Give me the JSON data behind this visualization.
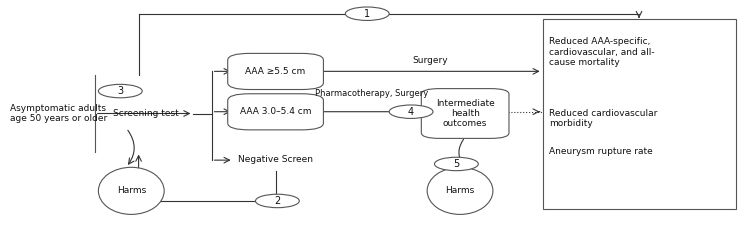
{
  "figsize": [
    7.5,
    2.27
  ],
  "dpi": 100,
  "bg_color": "#ffffff",
  "font_size": 6.5,
  "line_color": "#333333",
  "box_edge_color": "#555555",
  "text_color": "#111111",
  "asymptomatic_text": "Asymptomatic adults\nage 50 years or older",
  "screening_text": "Screening test",
  "aaa55_text": "AAA ≥5.5 cm",
  "aaa30_text": "AAA 3.0–5.4 cm",
  "negscreen_text": "Negative Screen",
  "intermediate_text": "Intermediate\nhealth\noutcomes",
  "outcome1_text": "Reduced AAA-specific,\ncardiovascular, and all-\ncause mortality",
  "outcome2_text": "Reduced cardiovascular\nmorbidity",
  "outcome3_text": "Aneurysm rupture rate",
  "harms_text": "Harms",
  "surgery_label": "Surgery",
  "pharma_label": "Pharmacotherapy, Surgery",
  "kq1": "1",
  "kq2": "2",
  "kq3": "3",
  "kq4": "4",
  "kq5": "5"
}
